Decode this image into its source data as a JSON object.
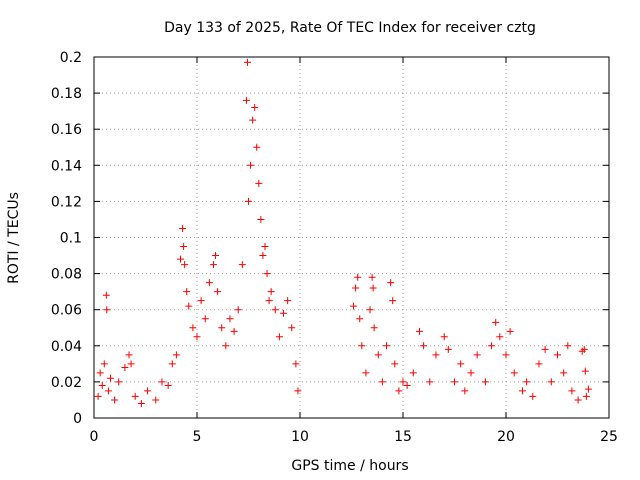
{
  "chart_data": {
    "type": "scatter",
    "title": "Day 133 of 2025, Rate Of TEC Index for receiver cztg",
    "xlabel": "GPS time / hours",
    "ylabel": "ROTI / TECUs",
    "xlim": [
      0,
      25
    ],
    "ylim": [
      0,
      0.2
    ],
    "xticks": [
      0,
      5,
      10,
      15,
      20,
      25
    ],
    "yticks": [
      0,
      0.02,
      0.04,
      0.06,
      0.08,
      0.1,
      0.12,
      0.14,
      0.16,
      0.18,
      0.2
    ],
    "xtick_labels": [
      "0",
      "5",
      "10",
      "15",
      "20",
      "25"
    ],
    "ytick_labels": [
      "0",
      "0.02",
      "0.04",
      "0.06",
      "0.08",
      "0.1",
      "0.12",
      "0.14",
      "0.16",
      "0.18",
      "0.2"
    ],
    "grid": true,
    "marker": "+",
    "color": "#ff0000",
    "series": [
      {
        "name": "ROTI",
        "points": [
          [
            0.2,
            0.012
          ],
          [
            0.3,
            0.025
          ],
          [
            0.4,
            0.018
          ],
          [
            0.5,
            0.03
          ],
          [
            0.6,
            0.068
          ],
          [
            0.62,
            0.06
          ],
          [
            0.7,
            0.015
          ],
          [
            0.8,
            0.022
          ],
          [
            1.0,
            0.01
          ],
          [
            1.2,
            0.02
          ],
          [
            1.5,
            0.028
          ],
          [
            1.7,
            0.035
          ],
          [
            1.8,
            0.03
          ],
          [
            2.0,
            0.012
          ],
          [
            2.3,
            0.008
          ],
          [
            2.6,
            0.015
          ],
          [
            3.0,
            0.01
          ],
          [
            3.3,
            0.02
          ],
          [
            3.6,
            0.018
          ],
          [
            3.8,
            0.03
          ],
          [
            4.0,
            0.035
          ],
          [
            4.2,
            0.088
          ],
          [
            4.3,
            0.105
          ],
          [
            4.35,
            0.095
          ],
          [
            4.4,
            0.085
          ],
          [
            4.5,
            0.07
          ],
          [
            4.6,
            0.062
          ],
          [
            4.8,
            0.05
          ],
          [
            5.0,
            0.045
          ],
          [
            5.2,
            0.065
          ],
          [
            5.4,
            0.055
          ],
          [
            5.6,
            0.075
          ],
          [
            5.8,
            0.085
          ],
          [
            5.9,
            0.09
          ],
          [
            6.0,
            0.07
          ],
          [
            6.2,
            0.05
          ],
          [
            6.4,
            0.04
          ],
          [
            6.6,
            0.055
          ],
          [
            6.8,
            0.048
          ],
          [
            7.0,
            0.06
          ],
          [
            7.2,
            0.085
          ],
          [
            7.4,
            0.176
          ],
          [
            7.45,
            0.197
          ],
          [
            7.5,
            0.12
          ],
          [
            7.6,
            0.14
          ],
          [
            7.7,
            0.165
          ],
          [
            7.8,
            0.172
          ],
          [
            7.9,
            0.15
          ],
          [
            8.0,
            0.13
          ],
          [
            8.1,
            0.11
          ],
          [
            8.2,
            0.09
          ],
          [
            8.3,
            0.095
          ],
          [
            8.4,
            0.08
          ],
          [
            8.5,
            0.065
          ],
          [
            8.6,
            0.07
          ],
          [
            8.8,
            0.06
          ],
          [
            9.0,
            0.045
          ],
          [
            9.2,
            0.058
          ],
          [
            9.4,
            0.065
          ],
          [
            9.6,
            0.05
          ],
          [
            9.8,
            0.03
          ],
          [
            9.9,
            0.015
          ],
          [
            12.6,
            0.062
          ],
          [
            12.7,
            0.072
          ],
          [
            12.8,
            0.078
          ],
          [
            12.9,
            0.055
          ],
          [
            13.0,
            0.04
          ],
          [
            13.2,
            0.025
          ],
          [
            13.4,
            0.06
          ],
          [
            13.5,
            0.078
          ],
          [
            13.55,
            0.072
          ],
          [
            13.6,
            0.05
          ],
          [
            13.8,
            0.035
          ],
          [
            14.0,
            0.02
          ],
          [
            14.2,
            0.04
          ],
          [
            14.4,
            0.075
          ],
          [
            14.5,
            0.065
          ],
          [
            14.6,
            0.03
          ],
          [
            14.8,
            0.015
          ],
          [
            15.0,
            0.02
          ],
          [
            15.2,
            0.018
          ],
          [
            15.5,
            0.025
          ],
          [
            15.8,
            0.048
          ],
          [
            16.0,
            0.04
          ],
          [
            16.3,
            0.02
          ],
          [
            16.6,
            0.035
          ],
          [
            17.0,
            0.045
          ],
          [
            17.2,
            0.038
          ],
          [
            17.5,
            0.02
          ],
          [
            17.8,
            0.03
          ],
          [
            18.0,
            0.015
          ],
          [
            18.3,
            0.025
          ],
          [
            18.6,
            0.035
          ],
          [
            19.0,
            0.02
          ],
          [
            19.3,
            0.04
          ],
          [
            19.5,
            0.053
          ],
          [
            19.7,
            0.045
          ],
          [
            20.0,
            0.035
          ],
          [
            20.2,
            0.048
          ],
          [
            20.4,
            0.025
          ],
          [
            20.8,
            0.015
          ],
          [
            21.0,
            0.02
          ],
          [
            21.3,
            0.012
          ],
          [
            21.6,
            0.03
          ],
          [
            21.9,
            0.038
          ],
          [
            22.2,
            0.02
          ],
          [
            22.5,
            0.035
          ],
          [
            22.8,
            0.025
          ],
          [
            23.0,
            0.04
          ],
          [
            23.2,
            0.015
          ],
          [
            23.5,
            0.01
          ],
          [
            23.7,
            0.037
          ],
          [
            23.8,
            0.038
          ],
          [
            23.85,
            0.026
          ],
          [
            23.9,
            0.012
          ],
          [
            24.0,
            0.016
          ]
        ]
      }
    ]
  }
}
